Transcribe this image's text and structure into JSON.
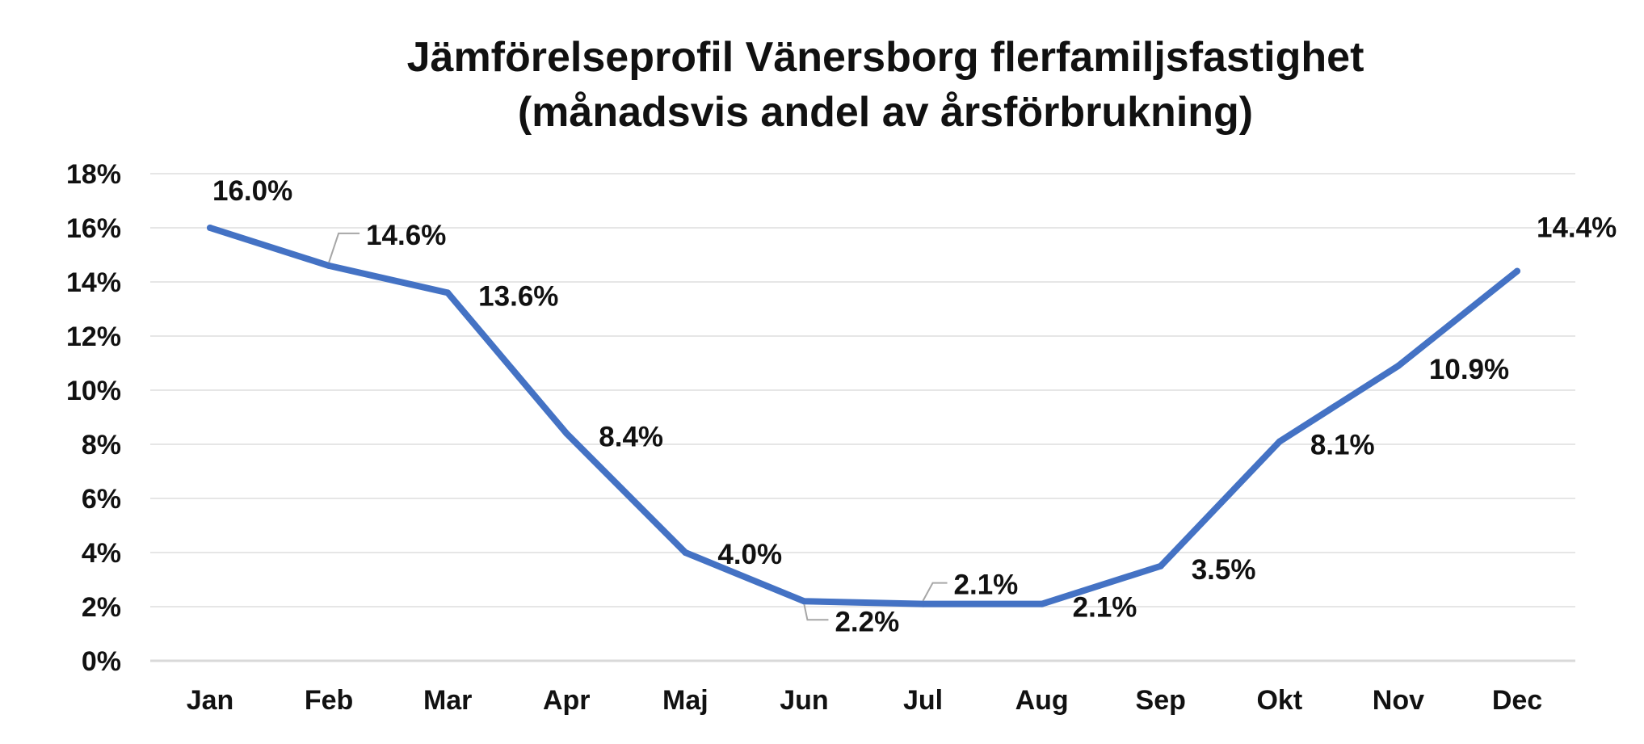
{
  "chart_data": {
    "type": "line",
    "title_lines": [
      "Jämförelseprofil Vänersborg flerfamiljsfastighet",
      "(månadsvis andel av årsförbrukning)"
    ],
    "categories": [
      "Jan",
      "Feb",
      "Mar",
      "Apr",
      "Maj",
      "Jun",
      "Jul",
      "Aug",
      "Sep",
      "Okt",
      "Nov",
      "Dec"
    ],
    "series": [
      {
        "values": [
          16.0,
          14.6,
          13.6,
          8.4,
          4.0,
          2.2,
          2.1,
          2.1,
          3.5,
          8.1,
          10.9,
          14.4
        ],
        "labels": [
          "16.0%",
          "14.6%",
          "13.6%",
          "8.4%",
          "4.0%",
          "2.2%",
          "2.1%",
          "2.1%",
          "3.5%",
          "8.1%",
          "10.9%",
          "14.4%"
        ],
        "color": "#4472C4"
      }
    ],
    "y_ticks": [
      "0%",
      "2%",
      "4%",
      "6%",
      "8%",
      "10%",
      "12%",
      "14%",
      "16%",
      "18%"
    ],
    "ylim": [
      0,
      18
    ],
    "y_step": 2,
    "grid": true,
    "legend": "none",
    "colors": {
      "line": "#4472C4",
      "grid": "#e6e6e6",
      "axis": "#d9d9d9",
      "leader": "#a6a6a6",
      "text": "#111111"
    }
  }
}
